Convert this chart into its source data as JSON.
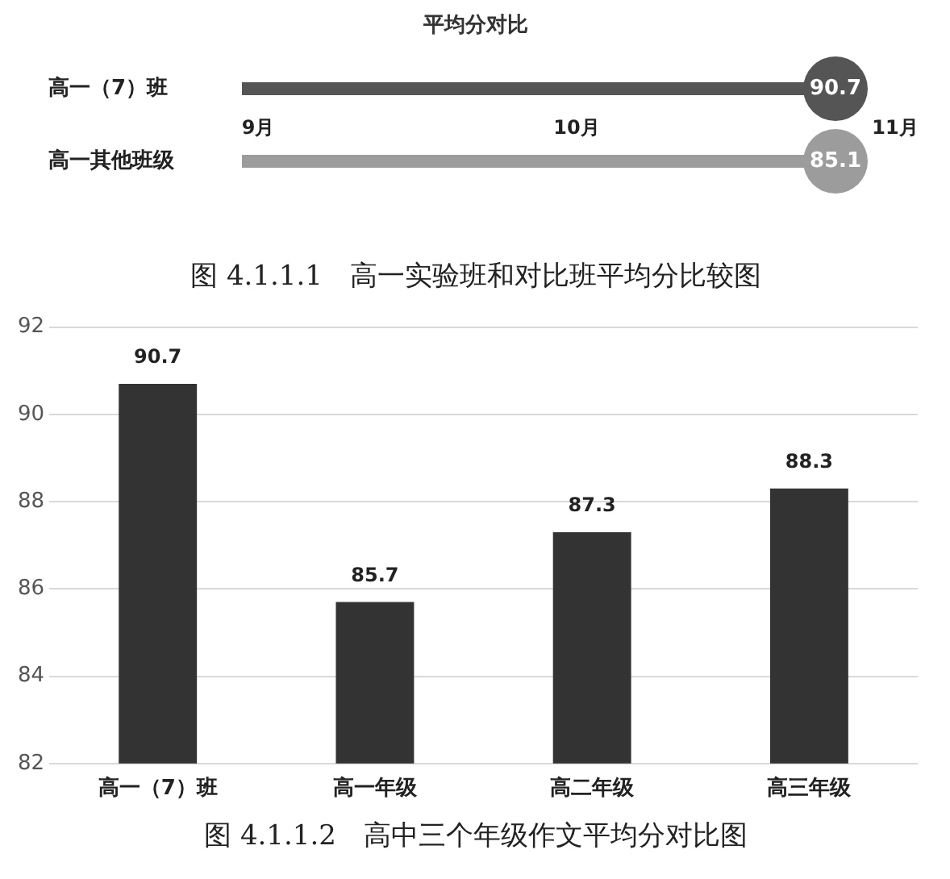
{
  "chart_data": [
    {
      "type": "other",
      "title": "平均分对比",
      "categories": [
        "高一（7）班",
        "高一其他班级"
      ],
      "values": [
        90.7,
        85.1
      ],
      "colors": [
        "#555555",
        "#9c9c9c"
      ],
      "data_labels": true,
      "annotations": [
        "9月",
        "10月",
        "11月",
        "图 4.1.1.1　高一实验班和对比班平均分比较图"
      ]
    },
    {
      "type": "bar",
      "categories": [
        "高一（7）班",
        "高一年级",
        "高二年级",
        "高三年级"
      ],
      "values": [
        90.7,
        85.7,
        87.3,
        88.3
      ],
      "color": "#333333",
      "ylim": [
        82,
        92
      ],
      "yticks": [
        82,
        84,
        86,
        88,
        90,
        92
      ],
      "grid": "y",
      "data_labels": true,
      "legend": false,
      "annotations": [
        "图 4.1.1.2　高中三个年级作文平均分对比图"
      ]
    }
  ]
}
